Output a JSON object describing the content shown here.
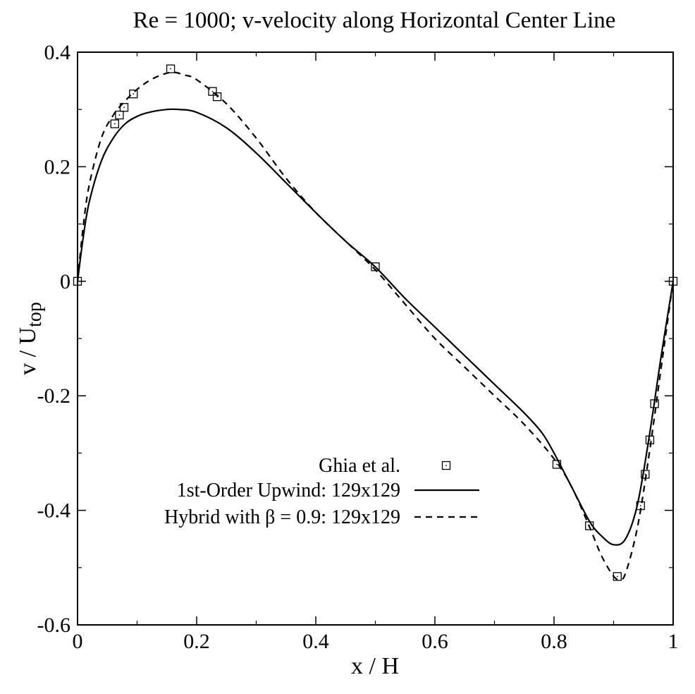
{
  "chart_data": {
    "type": "line",
    "title": "Re = 1000; v-velocity along Horizontal Center Line",
    "xlabel": "x / H",
    "ylabel_main": "v / U",
    "ylabel_sub": "top",
    "xlim": [
      0,
      1
    ],
    "ylim": [
      -0.6,
      0.4
    ],
    "x_ticks": [
      0,
      0.2,
      0.4,
      0.6,
      0.8,
      1
    ],
    "x_tick_labels": [
      "0",
      "0.2",
      "0.4",
      "0.6",
      "0.8",
      "1"
    ],
    "y_ticks": [
      -0.6,
      -0.4,
      -0.2,
      0,
      0.2,
      0.4
    ],
    "y_tick_labels": [
      "-0.6",
      "-0.4",
      "-0.2",
      "0",
      "0.2",
      "0.4"
    ],
    "grid": false,
    "legend_position": "lower-center",
    "series": [
      {
        "name": "Ghia et al.",
        "style": "markers-square",
        "x": [
          0.0,
          0.0625,
          0.0703,
          0.0781,
          0.0938,
          0.1563,
          0.2266,
          0.2344,
          0.5,
          0.8047,
          0.8594,
          0.9063,
          0.9453,
          0.9531,
          0.9609,
          0.9688,
          1.0
        ],
        "y": [
          0.0,
          0.2749,
          0.2903,
          0.3036,
          0.3271,
          0.3709,
          0.3315,
          0.3222,
          0.0253,
          -0.3197,
          -0.4269,
          -0.5155,
          -0.3919,
          -0.3371,
          -0.2771,
          -0.2138,
          0.0
        ]
      },
      {
        "name": "1st-Order Upwind: 129x129",
        "style": "solid",
        "x": [
          0,
          0.01,
          0.02,
          0.04,
          0.06,
          0.08,
          0.1,
          0.12,
          0.15,
          0.17,
          0.2,
          0.25,
          0.3,
          0.35,
          0.4,
          0.45,
          0.5,
          0.55,
          0.6,
          0.65,
          0.7,
          0.75,
          0.78,
          0.8,
          0.83,
          0.86,
          0.88,
          0.9,
          0.92,
          0.94,
          0.96,
          0.98,
          1.0
        ],
        "y": [
          0,
          0.08,
          0.14,
          0.21,
          0.25,
          0.275,
          0.288,
          0.295,
          0.3,
          0.3,
          0.295,
          0.268,
          0.224,
          0.172,
          0.12,
          0.07,
          0.025,
          -0.03,
          -0.08,
          -0.13,
          -0.18,
          -0.23,
          -0.265,
          -0.3,
          -0.36,
          -0.42,
          -0.445,
          -0.46,
          -0.45,
          -0.39,
          -0.27,
          -0.13,
          0
        ]
      },
      {
        "name": "Hybrid with β = 0.9: 129x129",
        "style": "dashed",
        "x": [
          0,
          0.01,
          0.02,
          0.04,
          0.06,
          0.08,
          0.1,
          0.12,
          0.14,
          0.16,
          0.18,
          0.2,
          0.25,
          0.3,
          0.35,
          0.4,
          0.45,
          0.5,
          0.55,
          0.6,
          0.65,
          0.7,
          0.75,
          0.8,
          0.83,
          0.86,
          0.88,
          0.9,
          0.91,
          0.92,
          0.94,
          0.96,
          0.98,
          1.0
        ],
        "y": [
          0,
          0.1,
          0.17,
          0.25,
          0.29,
          0.315,
          0.335,
          0.35,
          0.36,
          0.365,
          0.36,
          0.352,
          0.31,
          0.25,
          0.18,
          0.12,
          0.07,
          0.02,
          -0.04,
          -0.1,
          -0.15,
          -0.2,
          -0.25,
          -0.31,
          -0.36,
          -0.43,
          -0.48,
          -0.515,
          -0.52,
          -0.51,
          -0.43,
          -0.3,
          -0.15,
          0
        ]
      }
    ]
  }
}
